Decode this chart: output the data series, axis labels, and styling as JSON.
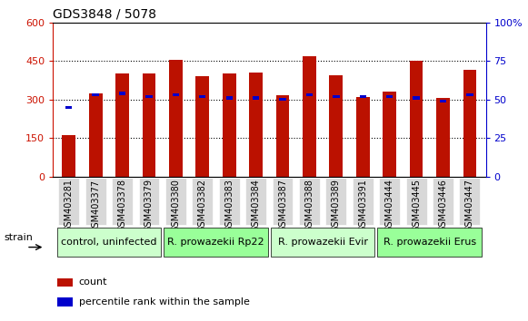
{
  "title": "GDS3848 / 5078",
  "samples": [
    "GSM403281",
    "GSM403377",
    "GSM403378",
    "GSM403379",
    "GSM403380",
    "GSM403382",
    "GSM403383",
    "GSM403384",
    "GSM403387",
    "GSM403388",
    "GSM403389",
    "GSM403391",
    "GSM403444",
    "GSM403445",
    "GSM403446",
    "GSM403447"
  ],
  "count_values": [
    160,
    325,
    400,
    400,
    455,
    390,
    400,
    405,
    315,
    470,
    395,
    310,
    330,
    450,
    305,
    415
  ],
  "percentile_values_pct": [
    45,
    53,
    54,
    52,
    53,
    52,
    51,
    51,
    50,
    53,
    52,
    52,
    52,
    51,
    49,
    53
  ],
  "groups": [
    {
      "label": "control, uninfected",
      "start": 0,
      "end": 4,
      "color": "#ccffcc"
    },
    {
      "label": "R. prowazekii Rp22",
      "start": 4,
      "end": 8,
      "color": "#99ff99"
    },
    {
      "label": "R. prowazekii Evir",
      "start": 8,
      "end": 12,
      "color": "#ccffcc"
    },
    {
      "label": "R. prowazekii Erus",
      "start": 12,
      "end": 16,
      "color": "#99ff99"
    }
  ],
  "left_ylim": [
    0,
    600
  ],
  "right_ylim": [
    0,
    100
  ],
  "left_yticks": [
    0,
    150,
    300,
    450,
    600
  ],
  "right_yticks": [
    0,
    25,
    50,
    75,
    100
  ],
  "bar_color": "#bb1100",
  "percentile_color": "#0000cc",
  "title_fontsize": 10,
  "tick_label_fontsize": 7,
  "group_label_fontsize": 8,
  "legend_fontsize": 8,
  "axis_color_left": "#cc1100",
  "axis_color_right": "#0000cc",
  "xtick_bg": "#d8d8d8"
}
